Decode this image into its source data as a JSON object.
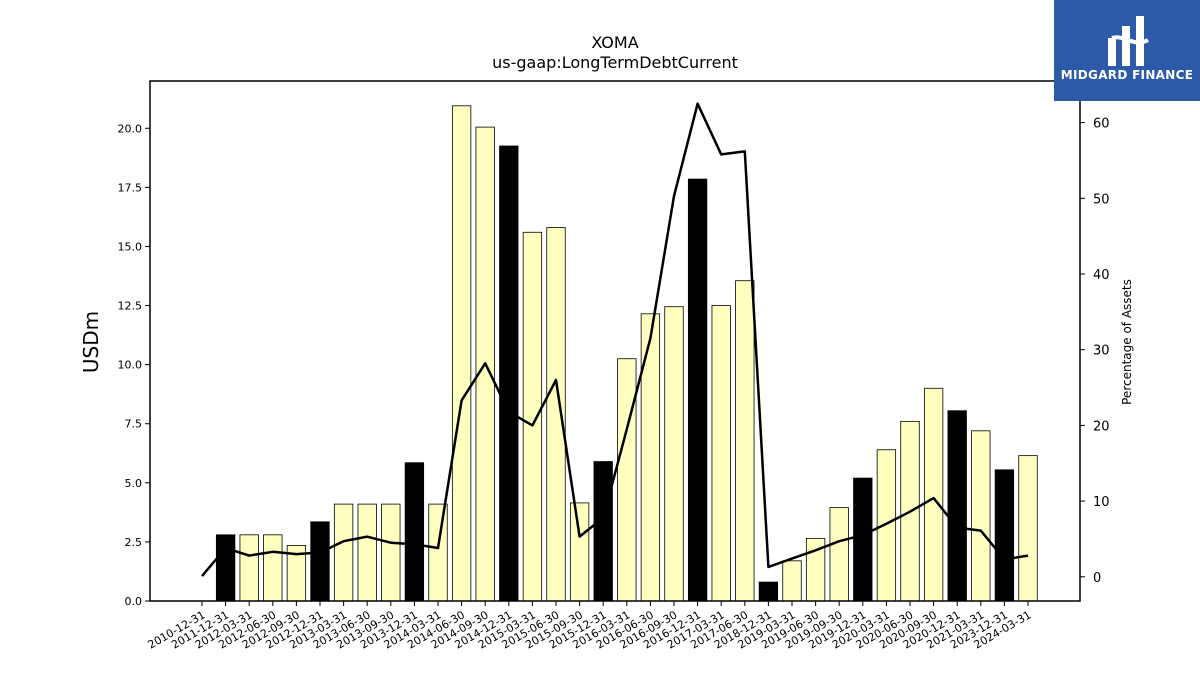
{
  "logo": {
    "text": "MIDGARD FINANCE",
    "color": "#2d5aa8"
  },
  "chart_data": {
    "type": "bar",
    "title": "XOMA",
    "subtitle": "us-gaap:LongTermDebtCurrent",
    "ylabel": "USDm",
    "y2label": "Percentage of Assets",
    "ylim": [
      0,
      22
    ],
    "y2lim": [
      -3.2,
      65.5
    ],
    "yticks": [
      "0.0",
      "2.5",
      "5.0",
      "7.5",
      "10.0",
      "12.5",
      "15.0",
      "17.5",
      "20.0"
    ],
    "y2ticks": [
      "0",
      "10",
      "20",
      "30",
      "40",
      "50",
      "60"
    ],
    "grid": false,
    "colors": {
      "quarter_bar": "#ffffc0",
      "year_end_bar": "#000000",
      "line": "#000000"
    },
    "categories": [
      "2010-12-31",
      "2011-12-31",
      "2012-03-31",
      "2012-06-30",
      "2012-09-30",
      "2012-12-31",
      "2013-03-31",
      "2013-06-30",
      "2013-09-30",
      "2013-12-31",
      "2014-03-31",
      "2014-06-30",
      "2014-09-30",
      "2014-12-31",
      "2015-03-31",
      "2015-06-30",
      "2015-09-30",
      "2015-12-31",
      "2016-03-31",
      "2016-06-30",
      "2016-09-30",
      "2016-12-31",
      "2017-03-31",
      "2017-06-30",
      "2018-12-31",
      "2019-03-31",
      "2019-06-30",
      "2019-09-30",
      "2019-12-31",
      "2020-03-31",
      "2020-06-30",
      "2020-09-30",
      "2020-12-31",
      "2021-03-31",
      "2023-12-31",
      "2024-03-31"
    ],
    "series": [
      {
        "kind": "bar",
        "values": [
          0,
          2.8,
          2.8,
          2.8,
          2.35,
          3.35,
          4.1,
          4.1,
          4.1,
          5.85,
          4.1,
          20.95,
          20.05,
          19.25,
          15.6,
          15.8,
          4.15,
          5.9,
          10.25,
          12.15,
          12.45,
          17.85,
          12.5,
          13.55,
          0.8,
          1.7,
          2.65,
          3.95,
          5.2,
          6.4,
          7.6,
          9.0,
          8.05,
          7.2,
          5.55,
          6.15
        ],
        "year_end": [
          true,
          true,
          false,
          false,
          false,
          true,
          false,
          false,
          false,
          true,
          false,
          false,
          false,
          true,
          false,
          false,
          false,
          true,
          false,
          false,
          false,
          true,
          false,
          false,
          true,
          false,
          false,
          false,
          true,
          false,
          false,
          false,
          true,
          false,
          true,
          false
        ]
      },
      {
        "kind": "line",
        "axis": "right",
        "values": [
          0.1,
          3.8,
          2.8,
          3.3,
          3.0,
          3.2,
          4.7,
          5.3,
          4.5,
          4.3,
          3.8,
          23.3,
          28.2,
          21.8,
          20.0,
          26.0,
          5.3,
          7.8,
          19.5,
          31.5,
          50.3,
          62.5,
          55.8,
          56.2,
          1.3,
          2.4,
          3.5,
          4.7,
          5.5,
          7.0,
          8.6,
          10.4,
          6.5,
          6.1,
          2.3,
          2.8
        ]
      }
    ]
  }
}
